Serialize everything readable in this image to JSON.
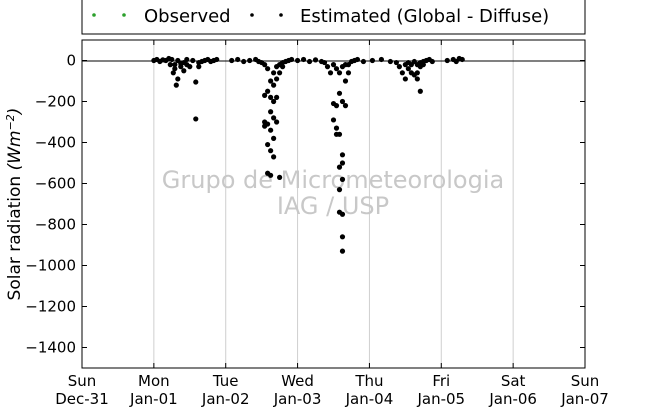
{
  "chart_data": {
    "type": "scatter",
    "title": "",
    "ylabel": "Solar radiation",
    "ylabel_unit": "(Wm^{-2})",
    "ylim": [
      -1500,
      100
    ],
    "yticks": [
      0,
      -200,
      -400,
      -600,
      -800,
      -1000,
      -1200,
      -1400
    ],
    "ytick_labels": [
      "0",
      "−200",
      "−400",
      "−600",
      "−800",
      "−1000",
      "−1200",
      "−1400"
    ],
    "xlim": [
      "2012-12-31",
      "2013-01-07"
    ],
    "x_ticks": [
      {
        "day": "Sun",
        "date": "Dec-31"
      },
      {
        "day": "Mon",
        "date": "Jan-01"
      },
      {
        "day": "Tue",
        "date": "Jan-02"
      },
      {
        "day": "Wed",
        "date": "Jan-03"
      },
      {
        "day": "Thu",
        "date": "Jan-04"
      },
      {
        "day": "Fri",
        "date": "Jan-05"
      },
      {
        "day": "Sat",
        "date": "Jan-06"
      },
      {
        "day": "Sun",
        "date": "Jan-07"
      }
    ],
    "grid": "vertical",
    "zero_line": true,
    "legend_position": "top",
    "watermark": [
      "Grupo de Micrometeorologia",
      "IAG / USP"
    ],
    "colors": {
      "observed": "#2ca02c",
      "estimated": "#000000",
      "grid": "#cfcfcf",
      "watermark": "#c8c8c8"
    },
    "series": [
      {
        "name": "Observed",
        "marker": "dot",
        "color": "#2ca02c",
        "x": [],
        "y": []
      },
      {
        "name": "Estimated (Global - Diffuse)",
        "marker": "dot",
        "color": "#000000",
        "x": [
          "2013-01-01 00:00",
          "2013-01-01 01:00",
          "2013-01-01 02:00",
          "2013-01-01 03:00",
          "2013-01-01 04:00",
          "2013-01-01 05:00",
          "2013-01-01 05:30",
          "2013-01-01 06:00",
          "2013-01-01 06:30",
          "2013-01-01 07:00",
          "2013-01-01 07:00",
          "2013-01-01 07:30",
          "2013-01-01 08:00",
          "2013-01-01 08:00",
          "2013-01-01 09:00",
          "2013-01-01 09:00",
          "2013-01-01 10:00",
          "2013-01-01 10:00",
          "2013-01-01 11:00",
          "2013-01-01 11:00",
          "2013-01-01 12:00",
          "2013-01-01 13:00",
          "2013-01-01 14:00",
          "2013-01-01 14:00",
          "2013-01-01 15:00",
          "2013-01-01 15:00",
          "2013-01-01 16:00",
          "2013-01-01 17:00",
          "2013-01-01 18:00",
          "2013-01-01 19:00",
          "2013-01-01 20:00",
          "2013-01-01 21:00",
          "2013-01-02 02:00",
          "2013-01-02 04:00",
          "2013-01-02 06:00",
          "2013-01-02 08:00",
          "2013-01-02 10:00",
          "2013-01-02 11:00",
          "2013-01-02 12:00",
          "2013-01-02 13:00",
          "2013-01-02 13:00",
          "2013-01-02 13:00",
          "2013-01-02 13:00",
          "2013-01-02 14:00",
          "2013-01-02 14:00",
          "2013-01-02 14:00",
          "2013-01-02 14:00",
          "2013-01-02 14:00",
          "2013-01-02 15:00",
          "2013-01-02 15:00",
          "2013-01-02 15:00",
          "2013-01-02 15:00",
          "2013-01-02 15:00",
          "2013-01-02 15:00",
          "2013-01-02 16:00",
          "2013-01-02 16:00",
          "2013-01-02 16:00",
          "2013-01-02 16:00",
          "2013-01-02 16:00",
          "2013-01-02 16:00",
          "2013-01-02 17:00",
          "2013-01-02 17:00",
          "2013-01-02 17:00",
          "2013-01-02 17:00",
          "2013-01-02 18:00",
          "2013-01-02 18:00",
          "2013-01-02 18:00",
          "2013-01-02 19:00",
          "2013-01-02 19:00",
          "2013-01-02 20:00",
          "2013-01-02 21:00",
          "2013-01-02 22:00",
          "2013-01-03 00:00",
          "2013-01-03 02:00",
          "2013-01-03 04:00",
          "2013-01-03 06:00",
          "2013-01-03 08:00",
          "2013-01-03 09:00",
          "2013-01-03 10:00",
          "2013-01-03 11:00",
          "2013-01-03 12:00",
          "2013-01-03 12:00",
          "2013-01-03 12:00",
          "2013-01-03 13:00",
          "2013-01-03 13:00",
          "2013-01-03 13:00",
          "2013-01-03 13:00",
          "2013-01-03 14:00",
          "2013-01-03 14:00",
          "2013-01-03 14:00",
          "2013-01-03 14:00",
          "2013-01-03 14:00",
          "2013-01-03 14:00",
          "2013-01-03 15:00",
          "2013-01-03 15:00",
          "2013-01-03 15:00",
          "2013-01-03 15:00",
          "2013-01-03 15:00",
          "2013-01-03 15:00",
          "2013-01-03 15:00",
          "2013-01-03 15:00",
          "2013-01-03 16:00",
          "2013-01-03 16:00",
          "2013-01-03 16:00",
          "2013-01-03 17:00",
          "2013-01-03 17:00",
          "2013-01-03 18:00",
          "2013-01-03 19:00",
          "2013-01-03 20:00",
          "2013-01-03 22:00",
          "2013-01-04 01:00",
          "2013-01-04 04:00",
          "2013-01-04 07:00",
          "2013-01-04 09:00",
          "2013-01-04 10:00",
          "2013-01-04 11:00",
          "2013-01-04 12:00",
          "2013-01-04 12:00",
          "2013-01-04 13:00",
          "2013-01-04 13:00",
          "2013-01-04 14:00",
          "2013-01-04 14:00",
          "2013-01-04 15:00",
          "2013-01-04 15:00",
          "2013-01-04 16:00",
          "2013-01-04 16:00",
          "2013-01-04 16:00",
          "2013-01-04 17:00",
          "2013-01-04 17:00",
          "2013-01-04 17:00",
          "2013-01-04 18:00",
          "2013-01-04 18:00",
          "2013-01-04 19:00",
          "2013-01-04 20:00",
          "2013-01-04 21:00",
          "2013-01-05 02:00",
          "2013-01-05 04:00",
          "2013-01-05 05:00",
          "2013-01-05 06:00",
          "2013-01-05 07:00"
        ],
        "y": [
          0,
          5,
          -5,
          3,
          0,
          10,
          -20,
          5,
          -60,
          -20,
          -40,
          -120,
          0,
          -90,
          -15,
          -30,
          -10,
          -50,
          5,
          -20,
          -30,
          0,
          -105,
          -285,
          -10,
          -30,
          -5,
          0,
          5,
          -5,
          0,
          5,
          0,
          5,
          -5,
          0,
          5,
          -5,
          -10,
          -170,
          -300,
          -320,
          -20,
          -150,
          -310,
          -410,
          -550,
          -40,
          -100,
          -180,
          -250,
          -340,
          -440,
          -560,
          -60,
          -120,
          -200,
          -280,
          -380,
          -470,
          -30,
          -90,
          -180,
          -300,
          -20,
          -60,
          -570,
          -10,
          -30,
          -5,
          0,
          5,
          0,
          5,
          -5,
          3,
          -5,
          -10,
          -30,
          -60,
          -20,
          -210,
          -290,
          -40,
          -220,
          -330,
          -360,
          -60,
          -160,
          -360,
          -520,
          -630,
          -740,
          -30,
          -200,
          -460,
          -500,
          -580,
          -750,
          -860,
          -930,
          -20,
          -100,
          -220,
          -20,
          -60,
          -5,
          0,
          5,
          -5,
          0,
          5,
          -5,
          -10,
          -30,
          -60,
          -20,
          -90,
          -10,
          -40,
          -20,
          -60,
          -5,
          -70,
          -20,
          -60,
          -90,
          -10,
          -30,
          -150,
          -5,
          -20,
          0,
          5,
          -5,
          0,
          5,
          -5,
          10,
          5
        ]
      }
    ]
  }
}
